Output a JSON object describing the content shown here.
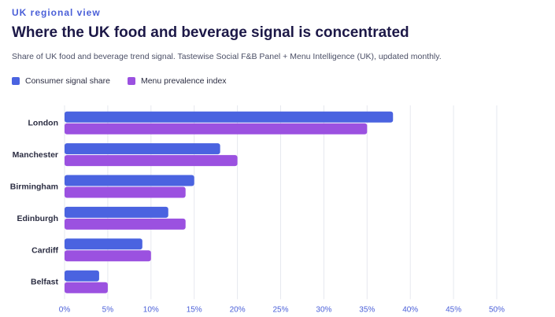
{
  "header": {
    "eyebrow": "UK regional view",
    "title": "Where the UK food and beverage signal is concentrated",
    "subtitle": "Share of UK food and beverage trend signal. Tastewise Social F&B Panel + Menu Intelligence (UK), updated monthly."
  },
  "chart_data": {
    "type": "bar",
    "orientation": "horizontal",
    "categories": [
      "London",
      "Manchester",
      "Birmingham",
      "Edinburgh",
      "Cardiff",
      "Belfast"
    ],
    "series": [
      {
        "name": "Consumer signal share",
        "color": "#4a63e0",
        "values": [
          38,
          18,
          15,
          12,
          9,
          4
        ]
      },
      {
        "name": "Menu prevalence index",
        "color": "#9b51e0",
        "values": [
          35,
          20,
          14,
          14,
          10,
          5
        ]
      }
    ],
    "xlim": [
      0,
      50
    ],
    "xticks": [
      0,
      5,
      10,
      15,
      20,
      25,
      30,
      35,
      40,
      45,
      50
    ],
    "xtick_labels": [
      "0%",
      "5%",
      "10%",
      "15%",
      "20%",
      "25%",
      "30%",
      "35%",
      "40%",
      "45%",
      "50%"
    ],
    "grid": "vertical",
    "legend": "top-left"
  }
}
